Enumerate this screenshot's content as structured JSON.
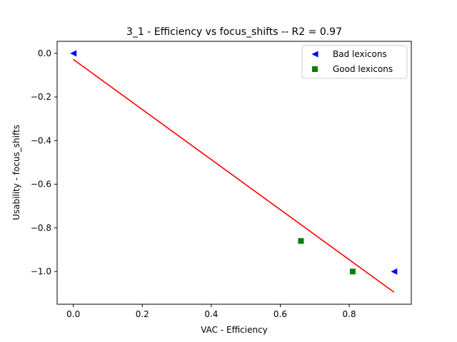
{
  "chart_data": {
    "type": "scatter",
    "title": "3_1 - Efficiency  vs  focus_shifts -- R2 = 0.97",
    "xlabel": "VAC - Efficiency",
    "ylabel": "Usability - focus_shifts",
    "xlim": [
      -0.047,
      0.98
    ],
    "ylim": [
      -1.15,
      0.055
    ],
    "xticks": [
      0.0,
      0.2,
      0.4,
      0.6,
      0.8
    ],
    "xtick_labels": [
      "0.0",
      "0.2",
      "0.4",
      "0.6",
      "0.8"
    ],
    "yticks": [
      0.0,
      -0.2,
      -0.4,
      -0.6,
      -0.8,
      -1.0
    ],
    "ytick_labels": [
      "0.0",
      "−0.2",
      "−0.4",
      "−0.6",
      "−0.8",
      "−1.0"
    ],
    "legend_position": "top-right",
    "series": [
      {
        "name": "Bad lexicons",
        "marker": "triangle-left",
        "color": "#0000ff",
        "x": [
          0.0,
          0.93
        ],
        "y": [
          0.0,
          -1.0
        ]
      },
      {
        "name": "Good lexicons",
        "marker": "square",
        "color": "#008000",
        "x": [
          0.66,
          0.81
        ],
        "y": [
          -0.86,
          -1.0
        ]
      }
    ],
    "fit_line": {
      "color": "#ff0000",
      "x": [
        0.0,
        0.93
      ],
      "y": [
        -0.028,
        -1.095
      ]
    }
  }
}
